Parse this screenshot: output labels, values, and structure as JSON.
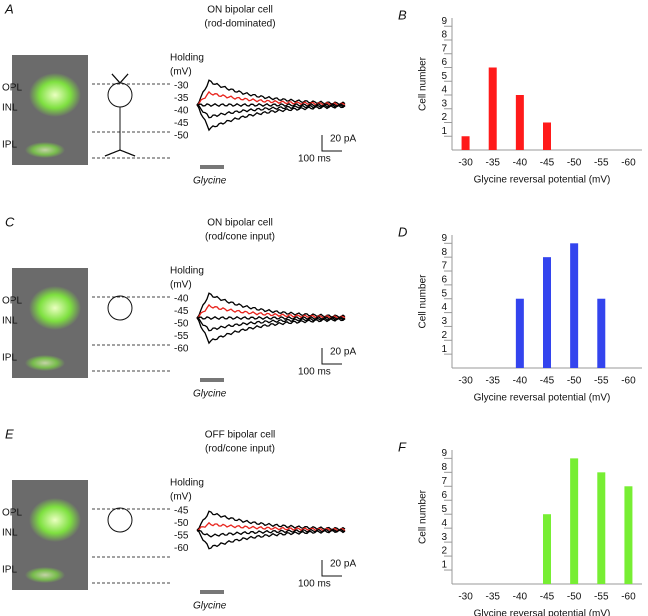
{
  "panels": [
    {
      "letter": "A",
      "title": [
        "ON bipolar cell",
        "(rod-dominated)"
      ],
      "holding": [
        "Holding",
        "(mV)"
      ],
      "holding_values": [
        "-30",
        "-35",
        "-40",
        "-45",
        "-50"
      ],
      "holding_colors": [
        "#000000",
        "#e8231c",
        "#000000",
        "#000000",
        "#000000"
      ],
      "layers": [
        "OPL",
        "INL",
        "IPL"
      ],
      "scale": [
        "20 pA",
        "100 ms"
      ],
      "drug": "Glycine"
    },
    {
      "letter": "C",
      "title": [
        "ON bipolar cell",
        "(rod/cone input)"
      ],
      "holding": [
        "Holding",
        "(mV)"
      ],
      "holding_values": [
        "-40",
        "-45",
        "-50",
        "-55",
        "-60"
      ],
      "holding_colors": [
        "#000000",
        "#e8231c",
        "#000000",
        "#000000",
        "#000000"
      ],
      "layers": [
        "OPL",
        "INL",
        "IPL"
      ],
      "scale": [
        "20 pA",
        "100 ms"
      ],
      "drug": "Glycine"
    },
    {
      "letter": "E",
      "title": [
        "OFF bipolar cell",
        "(rod/cone input)"
      ],
      "holding": [
        "Holding",
        "(mV)"
      ],
      "holding_values": [
        "-45",
        "-50",
        "-55",
        "-60"
      ],
      "holding_colors": [
        "#000000",
        "#e8231c",
        "#000000",
        "#000000"
      ],
      "layers": [
        "OPL",
        "INL",
        "IPL"
      ],
      "scale": [
        "20 pA",
        "100 ms"
      ],
      "drug": "Glycine"
    }
  ],
  "chart_data": [
    {
      "type": "bar",
      "title": "B",
      "categories": [
        "-30",
        "-35",
        "-40",
        "-45",
        "-50",
        "-55",
        "-60"
      ],
      "values": [
        1,
        6,
        4,
        2,
        0,
        0,
        0
      ],
      "color": "#ff1a1a",
      "ylim": [
        0,
        9.6
      ],
      "yticks": [
        1,
        2,
        3,
        4,
        5,
        6,
        7,
        8,
        9
      ],
      "x_label": "Glycine reversal potential (mV)",
      "y_label": "Cell number"
    },
    {
      "type": "bar",
      "title": "D",
      "categories": [
        "-30",
        "-35",
        "-40",
        "-45",
        "-50",
        "-55",
        "-60"
      ],
      "values": [
        0,
        0,
        5,
        8,
        9,
        5,
        0
      ],
      "color": "#3344ee",
      "ylim": [
        0,
        9.6
      ],
      "yticks": [
        1,
        2,
        3,
        4,
        5,
        6,
        7,
        8,
        9
      ],
      "x_label": "Glycine reversal potential (mV)",
      "y_label": "Cell number"
    },
    {
      "type": "bar",
      "title": "F",
      "categories": [
        "-30",
        "-35",
        "-40",
        "-45",
        "-50",
        "-55",
        "-60"
      ],
      "values": [
        0,
        0,
        0,
        5,
        9,
        8,
        7
      ],
      "color": "#77ee33",
      "ylim": [
        0,
        9.6
      ],
      "yticks": [
        1,
        2,
        3,
        4,
        5,
        6,
        7,
        8,
        9
      ],
      "x_label": "Glycine reversal potential (mV)",
      "y_label": "Cell number"
    }
  ]
}
